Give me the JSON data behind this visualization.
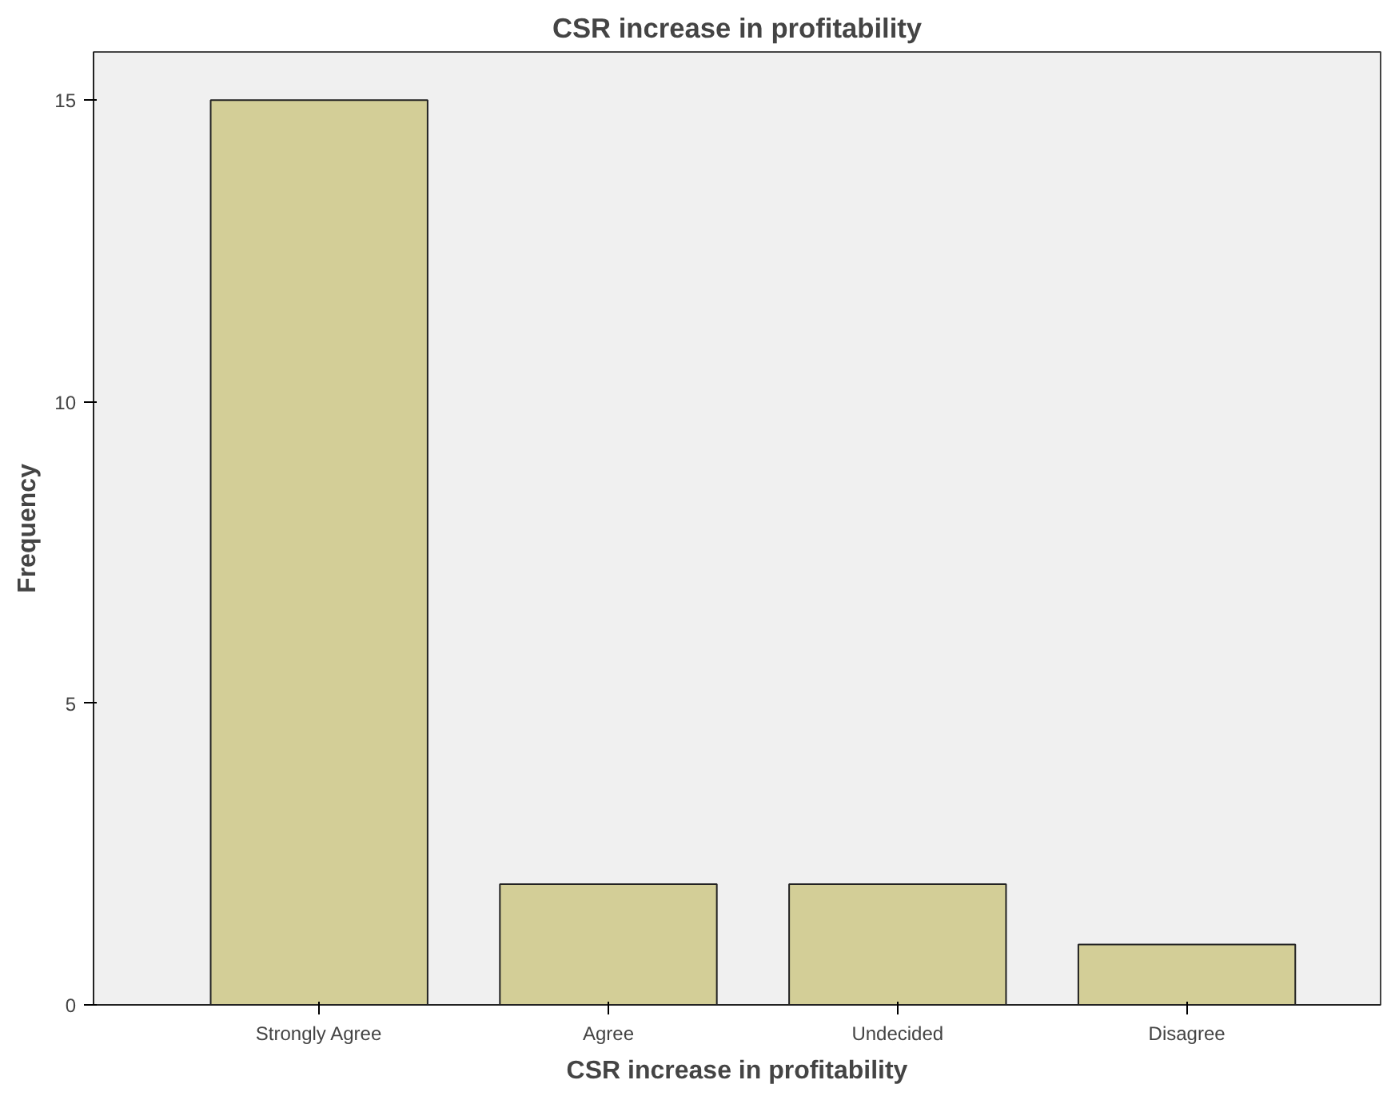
{
  "chart_data": {
    "type": "bar",
    "title": "CSR increase in profitability",
    "xlabel": "CSR increase in profitability",
    "ylabel": "Frequency",
    "categories": [
      "Strongly Agree",
      "Agree",
      "Undecided",
      "Disagree"
    ],
    "values": [
      15,
      2,
      2,
      1
    ],
    "color": "#d3ce97",
    "ylim": [
      0,
      15.8
    ],
    "yticks": [
      0,
      5,
      10,
      15
    ],
    "grid": false
  }
}
